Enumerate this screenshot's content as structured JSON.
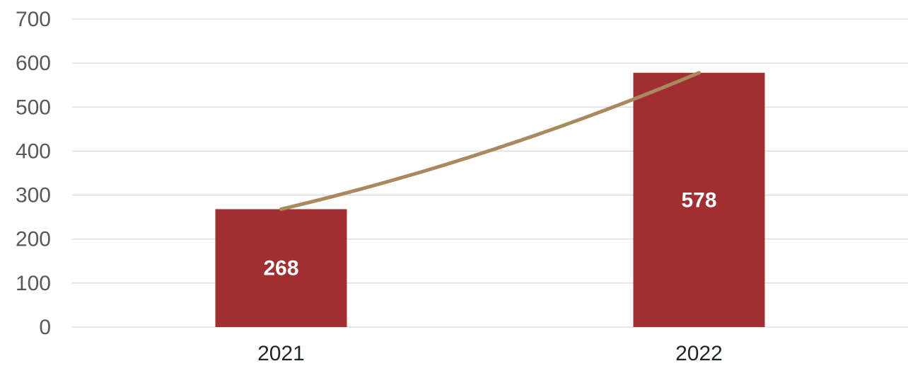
{
  "chart_data": {
    "type": "bar",
    "title": "",
    "xlabel": "",
    "ylabel": "",
    "categories": [
      "2021",
      "2022"
    ],
    "values": [
      268,
      578
    ],
    "ylim": [
      0,
      700
    ],
    "yticks": [
      0,
      100,
      200,
      300,
      400,
      500,
      600,
      700
    ],
    "grid": true,
    "legend": "none",
    "data_labels": [
      "268",
      "578"
    ],
    "trendline": {
      "type": "line",
      "values": [
        268,
        578
      ],
      "color": "#A88A5E"
    },
    "colors": {
      "bar": "#A12F31",
      "trendline": "#A88A5E",
      "grid": "#d9d9d9",
      "tick_text": "#595959",
      "category_text": "#1f2a1f",
      "data_label_text": "#ffffff"
    }
  }
}
